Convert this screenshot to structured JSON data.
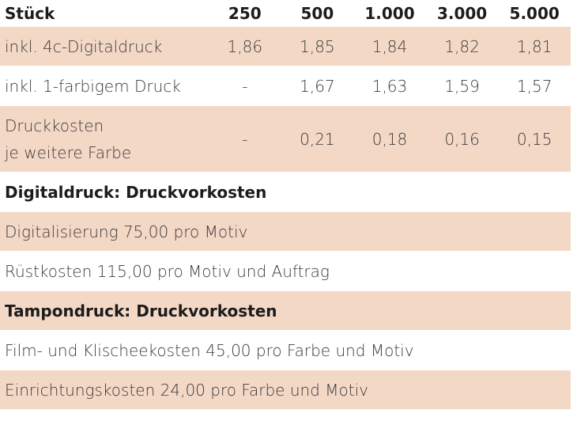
{
  "table": {
    "header": {
      "label": "Stück",
      "quantities": [
        "250",
        "500",
        "1.000",
        "3.000",
        "5.000"
      ]
    },
    "rows": [
      {
        "label": "inkl. 4c-Digitaldruck",
        "values": [
          "1,86",
          "1,85",
          "1,84",
          "1,82",
          "1,81"
        ]
      },
      {
        "label": "inkl. 1-farbigem Druck",
        "values": [
          "-",
          "1,67",
          "1,63",
          "1,59",
          "1,57"
        ]
      },
      {
        "label_line1": "Druckkosten",
        "label_line2": "je weitere Farbe",
        "values": [
          "-",
          "0,21",
          "0,18",
          "0,16",
          "0,15"
        ]
      }
    ],
    "digital_section": {
      "title": "Digitaldruck: Druckvorkosten",
      "items": [
        "Digitalisierung 75,00 pro Motiv",
        "Rüstkosten 115,00 pro Motiv und Auftrag"
      ]
    },
    "pad_section": {
      "title": "Tampondruck: Druckvorkosten",
      "items": [
        "Film- und Klischeekosten 45,00 pro Farbe und Motiv",
        "Einrichtungskosten 24,00 pro Farbe und Motiv"
      ]
    },
    "colors": {
      "shaded_row": "#f4d8c6",
      "text": "#3a3a3a"
    }
  }
}
